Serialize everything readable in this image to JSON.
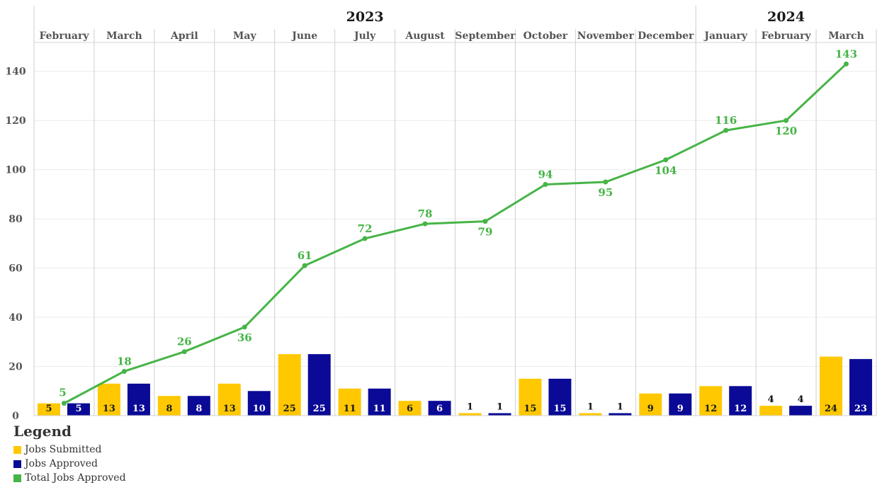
{
  "chart_data": {
    "type": "bar",
    "years": [
      {
        "label": "2023",
        "first_index": 0,
        "last_index": 10
      },
      {
        "label": "2024",
        "first_index": 11,
        "last_index": 13
      }
    ],
    "categories": [
      "February",
      "March",
      "April",
      "May",
      "June",
      "July",
      "August",
      "September",
      "October",
      "November",
      "December",
      "January",
      "February",
      "March"
    ],
    "ylim": [
      0,
      150
    ],
    "y_ticks": [
      0,
      20,
      40,
      60,
      80,
      100,
      120,
      140
    ],
    "grid": true,
    "series": [
      {
        "name": "Jobs Submitted",
        "kind": "bar",
        "color": "#FFC800",
        "values": [
          5,
          13,
          8,
          13,
          25,
          11,
          6,
          1,
          15,
          1,
          9,
          12,
          4,
          24
        ]
      },
      {
        "name": "Jobs Approved",
        "kind": "bar",
        "color": "#0A0A96",
        "values": [
          5,
          13,
          8,
          10,
          25,
          11,
          6,
          1,
          15,
          1,
          9,
          12,
          4,
          23
        ]
      },
      {
        "name": "Total Jobs Approved",
        "kind": "line",
        "color": "#46B446",
        "values": [
          5,
          18,
          26,
          36,
          61,
          72,
          78,
          79,
          94,
          95,
          104,
          116,
          120,
          143
        ]
      }
    ]
  },
  "legend": {
    "title": "Legend",
    "items": [
      {
        "label": "Jobs Submitted",
        "color": "#FFC800"
      },
      {
        "label": "Jobs Approved",
        "color": "#0A0A96"
      },
      {
        "label": "Total Jobs Approved",
        "color": "#46B446"
      }
    ]
  }
}
